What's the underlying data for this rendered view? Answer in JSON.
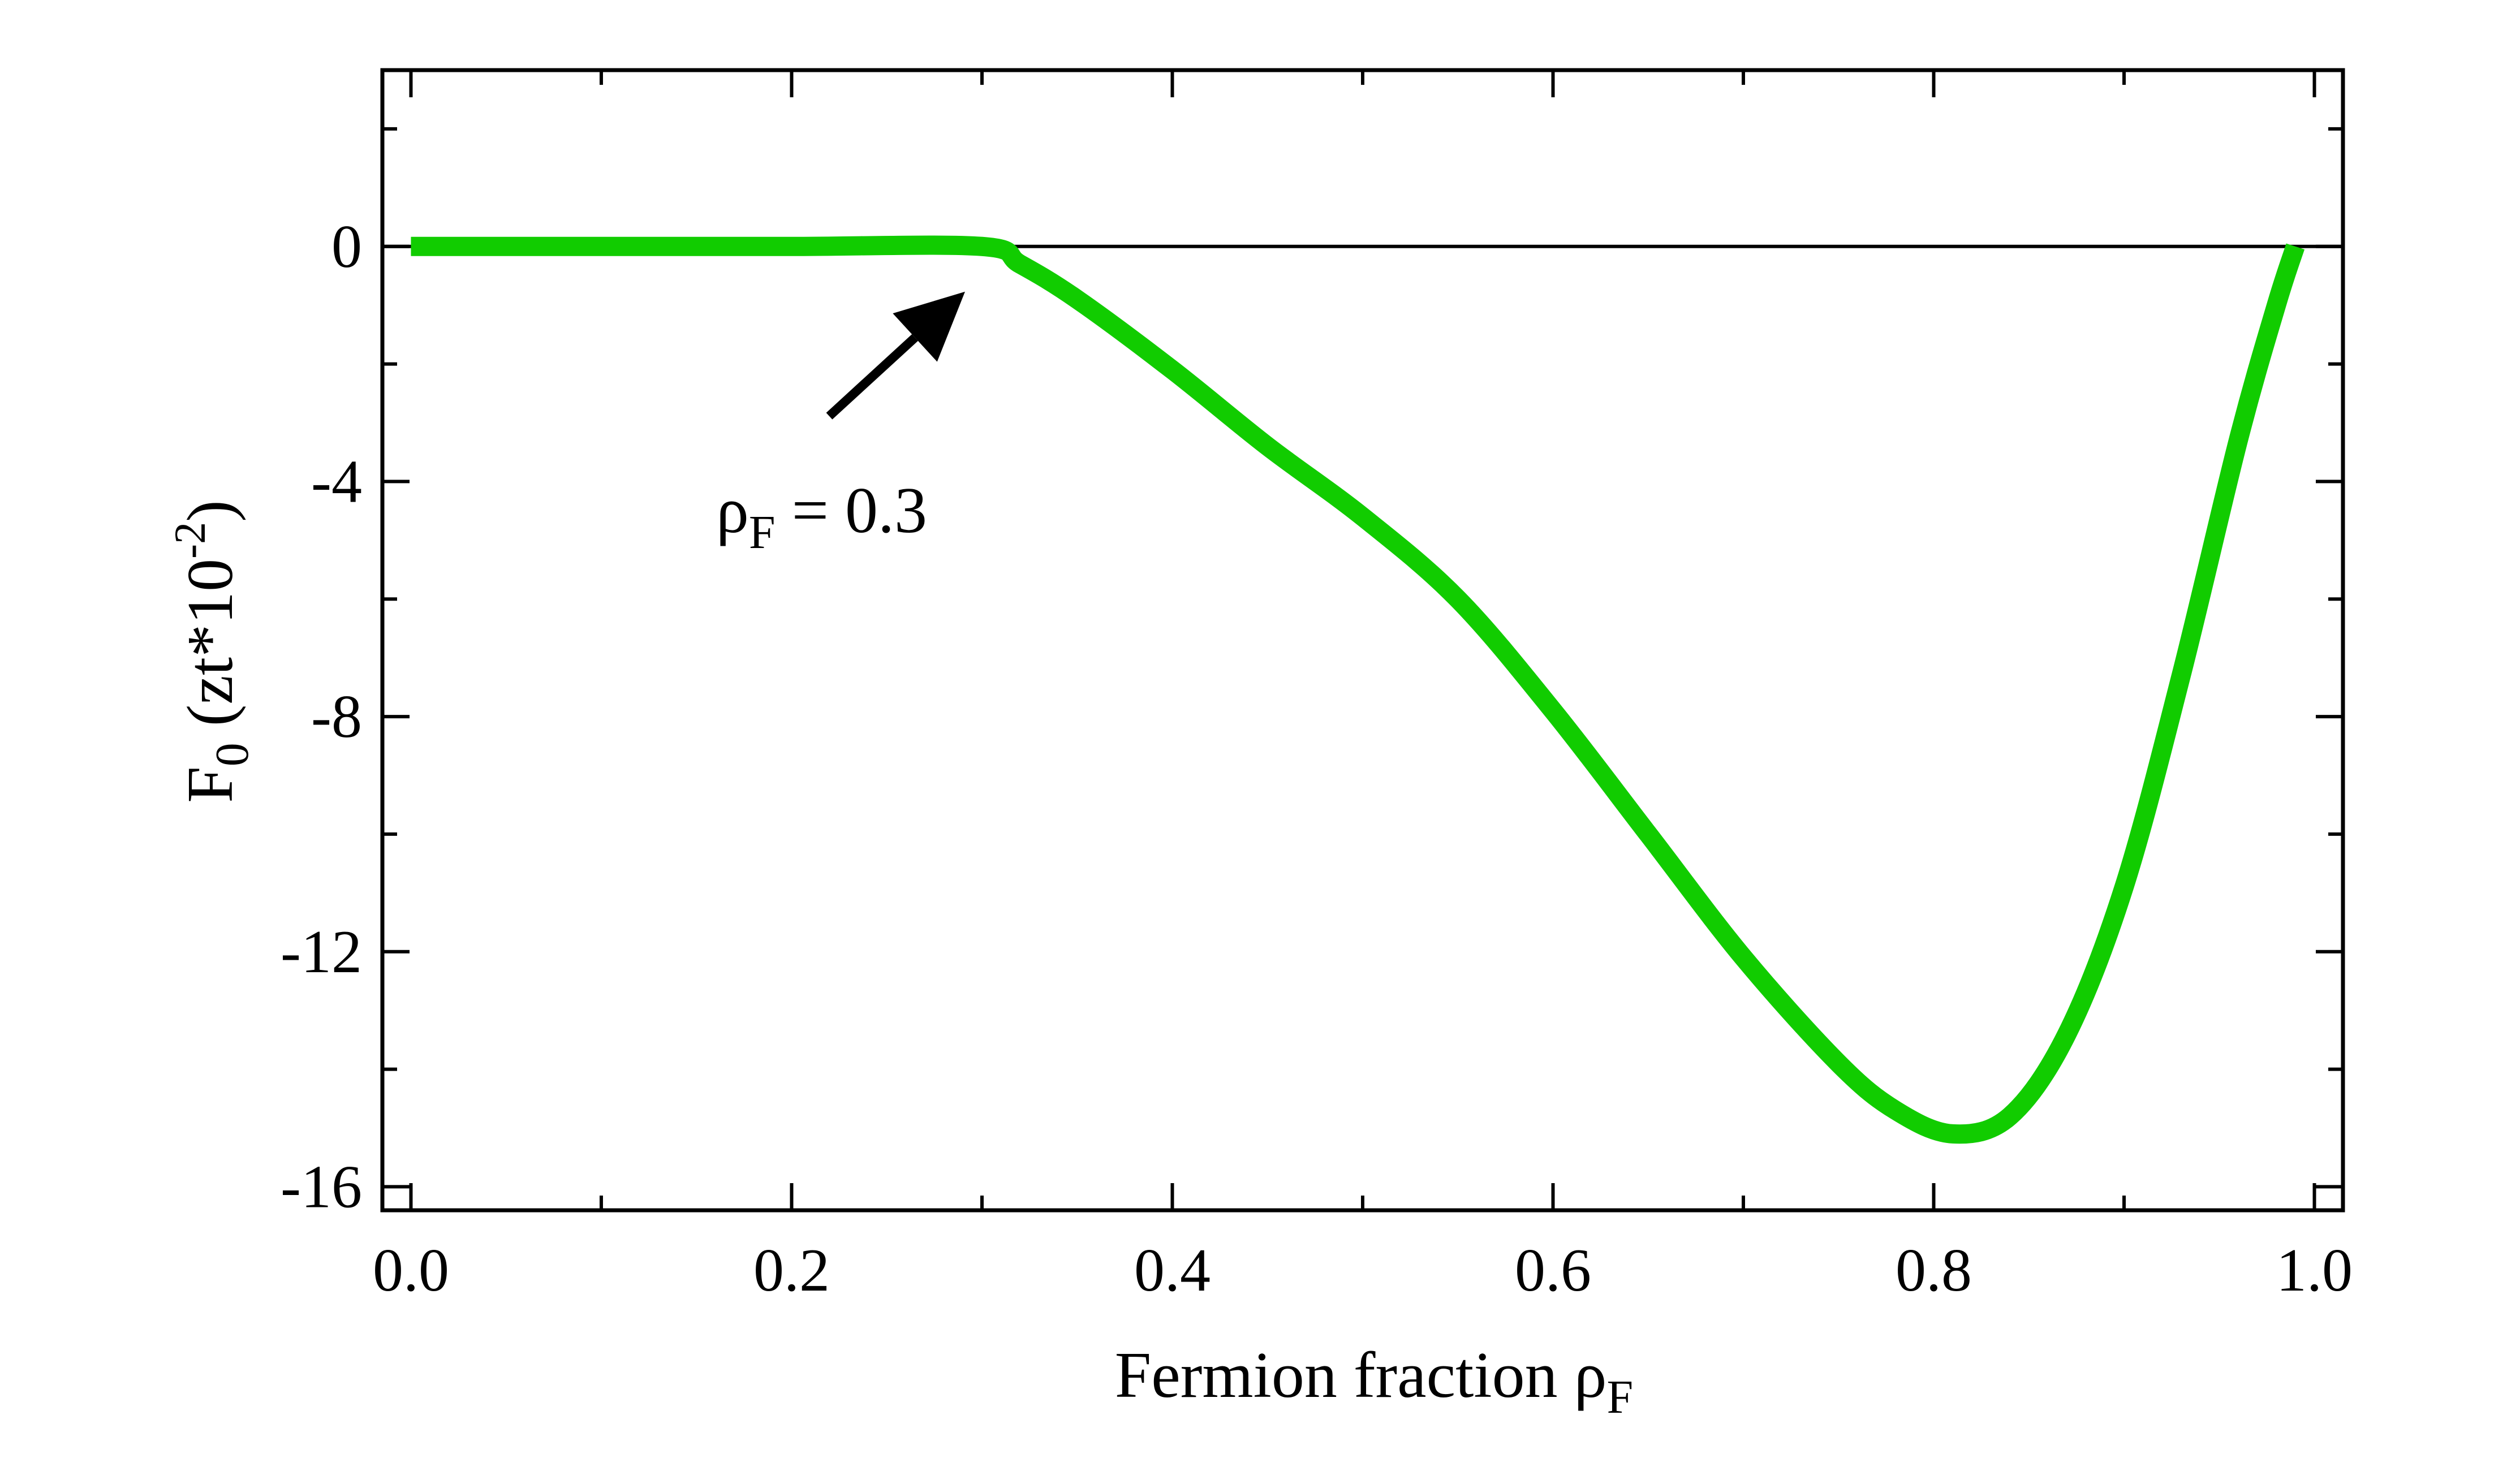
{
  "chart_data": {
    "type": "line",
    "xlabel": {
      "main": "Fermion fraction ρ",
      "sub": "F"
    },
    "ylabel": {
      "main": "F",
      "sub": "0",
      "mid": " (zt*10",
      "sup": "-2",
      "end": ")"
    },
    "xlim": [
      -0.015,
      1.015
    ],
    "ylim": [
      -16.4,
      3
    ],
    "xticks": [
      0.0,
      0.2,
      0.4,
      0.6,
      0.8,
      1.0
    ],
    "xtick_labels": [
      "0.0",
      "0.2",
      "0.4",
      "0.6",
      "0.8",
      "1.0"
    ],
    "xminor": [
      0.1,
      0.3,
      0.5,
      0.7,
      0.9
    ],
    "yticks": [
      0,
      -4,
      -8,
      -12,
      -16
    ],
    "ytick_labels": [
      "0",
      "-4",
      "-8",
      "-12",
      "-16"
    ],
    "yminor": [
      2,
      -2,
      -6,
      -10,
      -14
    ],
    "reference_line": {
      "y": 0,
      "color": "#000000"
    },
    "series": [
      {
        "color": "#11cc00",
        "x": [
          0.0,
          0.1,
          0.2,
          0.3,
          0.32,
          0.35,
          0.4,
          0.45,
          0.5,
          0.55,
          0.6,
          0.65,
          0.7,
          0.75,
          0.78,
          0.81,
          0.84,
          0.87,
          0.9,
          0.93,
          0.96,
          0.98,
          0.99
        ],
        "y": [
          0.0,
          0.0,
          0.0,
          0.0,
          -0.3,
          -0.9,
          -2.1,
          -3.4,
          -4.6,
          -6.0,
          -7.9,
          -10.0,
          -12.1,
          -13.9,
          -14.7,
          -15.1,
          -14.8,
          -13.4,
          -10.9,
          -7.3,
          -3.3,
          -1.0,
          0.0
        ]
      }
    ],
    "annotation": {
      "label_main": "ρ",
      "label_sub": "F",
      "label_rest": " = 0.3",
      "points_to": {
        "x": 0.3,
        "y": 0.0
      }
    }
  }
}
